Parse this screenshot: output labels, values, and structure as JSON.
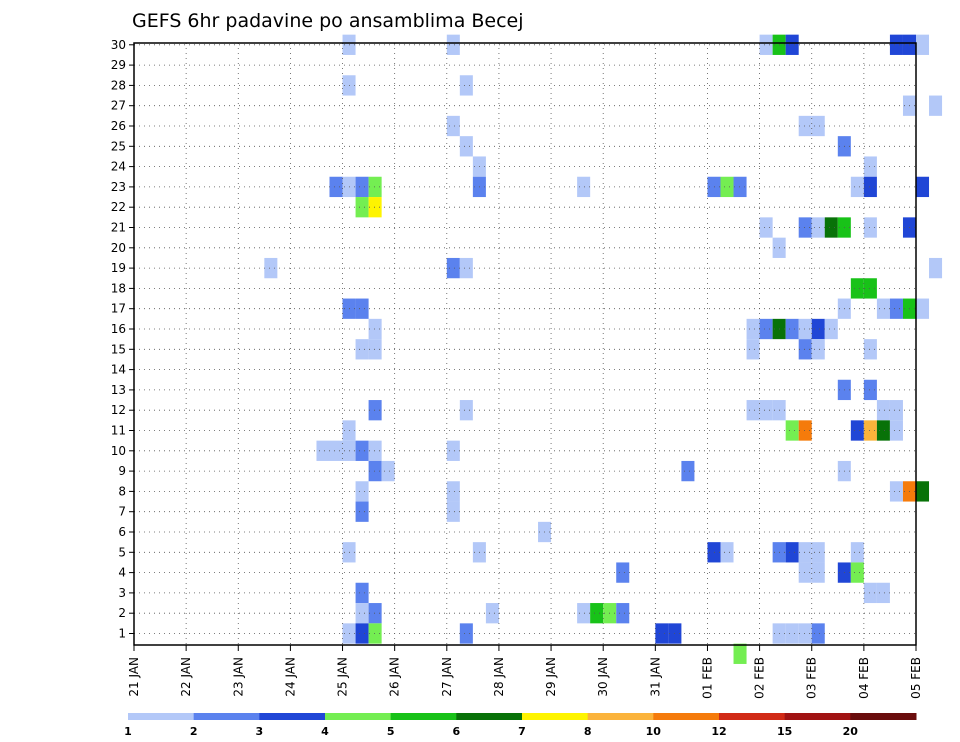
{
  "chart_data": {
    "type": "heatmap",
    "title": "GEFS 6hr padavine po ansamblima Becej",
    "xlabel": "",
    "ylabel": "",
    "x_tick_labels": [
      "21 JAN",
      "22 JAN",
      "23 JAN",
      "24 JAN",
      "25 JAN",
      "26 JAN",
      "27 JAN",
      "28 JAN",
      "29 JAN",
      "30 JAN",
      "31 JAN",
      "01 FEB",
      "02 FEB",
      "03 FEB",
      "04 FEB",
      "05 FEB"
    ],
    "y_range": [
      1,
      30
    ],
    "y_tick_labels": [
      "1",
      "2",
      "3",
      "4",
      "5",
      "6",
      "7",
      "8",
      "9",
      "10",
      "11",
      "12",
      "13",
      "14",
      "15",
      "16",
      "17",
      "18",
      "19",
      "20",
      "21",
      "22",
      "23",
      "24",
      "25",
      "26",
      "27",
      "28",
      "29",
      "30"
    ],
    "grid": true,
    "colorbar": {
      "placement": "bottom",
      "levels": [
        "1",
        "2",
        "3",
        "4",
        "5",
        "6",
        "7",
        "8",
        "10",
        "12",
        "15",
        "20"
      ],
      "colors": [
        "#b3c8f8",
        "#5b82ee",
        "#2046d6",
        "#74ee52",
        "#18c218",
        "#087208",
        "#fef400",
        "#fbb33b",
        "#f57b0b",
        "#d12a16",
        "#a11313",
        "#6a0d0d"
      ]
    },
    "cells": [
      {
        "m": 30,
        "t": 16,
        "c": 0
      },
      {
        "m": 30,
        "t": 24,
        "c": 0
      },
      {
        "m": 30,
        "t": 48,
        "c": 0
      },
      {
        "m": 30,
        "t": 49,
        "c": 4
      },
      {
        "m": 30,
        "t": 50,
        "c": 2
      },
      {
        "m": 30,
        "t": 58,
        "c": 2
      },
      {
        "m": 30,
        "t": 59,
        "c": 2
      },
      {
        "m": 30,
        "t": 60,
        "c": 0
      },
      {
        "m": 28,
        "t": 16,
        "c": 0
      },
      {
        "m": 28,
        "t": 25,
        "c": 0
      },
      {
        "m": 27,
        "t": 59,
        "c": 0
      },
      {
        "m": 27,
        "t": 61,
        "c": 0
      },
      {
        "m": 26,
        "t": 24,
        "c": 0
      },
      {
        "m": 26,
        "t": 51,
        "c": 0
      },
      {
        "m": 26,
        "t": 52,
        "c": 0
      },
      {
        "m": 25,
        "t": 25,
        "c": 0
      },
      {
        "m": 25,
        "t": 54,
        "c": 1
      },
      {
        "m": 24,
        "t": 26,
        "c": 0
      },
      {
        "m": 24,
        "t": 56,
        "c": 0
      },
      {
        "m": 23,
        "t": 15,
        "c": 1
      },
      {
        "m": 23,
        "t": 16,
        "c": 0
      },
      {
        "m": 23,
        "t": 17,
        "c": 1
      },
      {
        "m": 23,
        "t": 18,
        "c": 3
      },
      {
        "m": 23,
        "t": 26,
        "c": 1
      },
      {
        "m": 23,
        "t": 34,
        "c": 0
      },
      {
        "m": 23,
        "t": 44,
        "c": 1
      },
      {
        "m": 23,
        "t": 45,
        "c": 3
      },
      {
        "m": 23,
        "t": 46,
        "c": 1
      },
      {
        "m": 23,
        "t": 55,
        "c": 0
      },
      {
        "m": 23,
        "t": 56,
        "c": 2
      },
      {
        "m": 23,
        "t": 60,
        "c": 2
      },
      {
        "m": 22,
        "t": 17,
        "c": 3
      },
      {
        "m": 22,
        "t": 18,
        "c": 6
      },
      {
        "m": 21,
        "t": 48,
        "c": 0
      },
      {
        "m": 21,
        "t": 51,
        "c": 1
      },
      {
        "m": 21,
        "t": 52,
        "c": 0
      },
      {
        "m": 21,
        "t": 53,
        "c": 5
      },
      {
        "m": 21,
        "t": 54,
        "c": 4
      },
      {
        "m": 21,
        "t": 56,
        "c": 0
      },
      {
        "m": 21,
        "t": 59,
        "c": 2
      },
      {
        "m": 20,
        "t": 49,
        "c": 0
      },
      {
        "m": 19,
        "t": 10,
        "c": 0
      },
      {
        "m": 19,
        "t": 24,
        "c": 1
      },
      {
        "m": 19,
        "t": 25,
        "c": 0
      },
      {
        "m": 19,
        "t": 61,
        "c": 0
      },
      {
        "m": 18,
        "t": 55,
        "c": 4
      },
      {
        "m": 18,
        "t": 56,
        "c": 4
      },
      {
        "m": 17,
        "t": 16,
        "c": 1
      },
      {
        "m": 17,
        "t": 17,
        "c": 1
      },
      {
        "m": 17,
        "t": 54,
        "c": 0
      },
      {
        "m": 17,
        "t": 57,
        "c": 0
      },
      {
        "m": 17,
        "t": 58,
        "c": 1
      },
      {
        "m": 17,
        "t": 59,
        "c": 4
      },
      {
        "m": 17,
        "t": 60,
        "c": 0
      },
      {
        "m": 16,
        "t": 18,
        "c": 0
      },
      {
        "m": 16,
        "t": 47,
        "c": 0
      },
      {
        "m": 16,
        "t": 48,
        "c": 1
      },
      {
        "m": 16,
        "t": 49,
        "c": 5
      },
      {
        "m": 16,
        "t": 50,
        "c": 1
      },
      {
        "m": 16,
        "t": 51,
        "c": 0
      },
      {
        "m": 16,
        "t": 52,
        "c": 2
      },
      {
        "m": 16,
        "t": 53,
        "c": 0
      },
      {
        "m": 15,
        "t": 17,
        "c": 0
      },
      {
        "m": 15,
        "t": 18,
        "c": 0
      },
      {
        "m": 15,
        "t": 47,
        "c": 0
      },
      {
        "m": 15,
        "t": 51,
        "c": 1
      },
      {
        "m": 15,
        "t": 52,
        "c": 0
      },
      {
        "m": 15,
        "t": 56,
        "c": 0
      },
      {
        "m": 13,
        "t": 54,
        "c": 1
      },
      {
        "m": 13,
        "t": 56,
        "c": 1
      },
      {
        "m": 12,
        "t": 18,
        "c": 1
      },
      {
        "m": 12,
        "t": 25,
        "c": 0
      },
      {
        "m": 12,
        "t": 47,
        "c": 0
      },
      {
        "m": 12,
        "t": 48,
        "c": 0
      },
      {
        "m": 12,
        "t": 49,
        "c": 0
      },
      {
        "m": 12,
        "t": 57,
        "c": 0
      },
      {
        "m": 12,
        "t": 58,
        "c": 0
      },
      {
        "m": 11,
        "t": 16,
        "c": 0
      },
      {
        "m": 11,
        "t": 50,
        "c": 3
      },
      {
        "m": 11,
        "t": 51,
        "c": 8
      },
      {
        "m": 11,
        "t": 55,
        "c": 2
      },
      {
        "m": 11,
        "t": 56,
        "c": 7
      },
      {
        "m": 11,
        "t": 57,
        "c": 5
      },
      {
        "m": 11,
        "t": 58,
        "c": 0
      },
      {
        "m": 10,
        "t": 14,
        "c": 0
      },
      {
        "m": 10,
        "t": 15,
        "c": 0
      },
      {
        "m": 10,
        "t": 16,
        "c": 0
      },
      {
        "m": 10,
        "t": 17,
        "c": 1
      },
      {
        "m": 10,
        "t": 18,
        "c": 0
      },
      {
        "m": 10,
        "t": 24,
        "c": 0
      },
      {
        "m": 9,
        "t": 18,
        "c": 1
      },
      {
        "m": 9,
        "t": 19,
        "c": 0
      },
      {
        "m": 9,
        "t": 42,
        "c": 1
      },
      {
        "m": 9,
        "t": 54,
        "c": 0
      },
      {
        "m": 8,
        "t": 17,
        "c": 0
      },
      {
        "m": 8,
        "t": 24,
        "c": 0
      },
      {
        "m": 8,
        "t": 58,
        "c": 0
      },
      {
        "m": 8,
        "t": 59,
        "c": 8
      },
      {
        "m": 8,
        "t": 60,
        "c": 5
      },
      {
        "m": 7,
        "t": 17,
        "c": 1
      },
      {
        "m": 7,
        "t": 24,
        "c": 0
      },
      {
        "m": 6,
        "t": 31,
        "c": 0
      },
      {
        "m": 5,
        "t": 16,
        "c": 0
      },
      {
        "m": 5,
        "t": 26,
        "c": 0
      },
      {
        "m": 5,
        "t": 44,
        "c": 2
      },
      {
        "m": 5,
        "t": 45,
        "c": 0
      },
      {
        "m": 5,
        "t": 49,
        "c": 1
      },
      {
        "m": 5,
        "t": 50,
        "c": 2
      },
      {
        "m": 5,
        "t": 51,
        "c": 0
      },
      {
        "m": 5,
        "t": 52,
        "c": 0
      },
      {
        "m": 5,
        "t": 55,
        "c": 0
      },
      {
        "m": 4,
        "t": 37,
        "c": 1
      },
      {
        "m": 4,
        "t": 51,
        "c": 0
      },
      {
        "m": 4,
        "t": 52,
        "c": 0
      },
      {
        "m": 4,
        "t": 54,
        "c": 2
      },
      {
        "m": 4,
        "t": 55,
        "c": 3
      },
      {
        "m": 3,
        "t": 17,
        "c": 1
      },
      {
        "m": 3,
        "t": 56,
        "c": 0
      },
      {
        "m": 3,
        "t": 57,
        "c": 0
      },
      {
        "m": 2,
        "t": 17,
        "c": 0
      },
      {
        "m": 2,
        "t": 18,
        "c": 1
      },
      {
        "m": 2,
        "t": 27,
        "c": 0
      },
      {
        "m": 2,
        "t": 34,
        "c": 0
      },
      {
        "m": 2,
        "t": 35,
        "c": 4
      },
      {
        "m": 2,
        "t": 36,
        "c": 3
      },
      {
        "m": 2,
        "t": 37,
        "c": 1
      },
      {
        "m": 1,
        "t": 16,
        "c": 0
      },
      {
        "m": 1,
        "t": 17,
        "c": 2
      },
      {
        "m": 1,
        "t": 18,
        "c": 3
      },
      {
        "m": 1,
        "t": 25,
        "c": 1
      },
      {
        "m": 1,
        "t": 40,
        "c": 2
      },
      {
        "m": 1,
        "t": 41,
        "c": 2
      },
      {
        "m": 1,
        "t": 49,
        "c": 0
      },
      {
        "m": 1,
        "t": 50,
        "c": 0
      },
      {
        "m": 1,
        "t": 51,
        "c": 0
      },
      {
        "m": 1,
        "t": 52,
        "c": 1
      },
      {
        "m": 0,
        "t": 46,
        "c": 3
      }
    ]
  }
}
